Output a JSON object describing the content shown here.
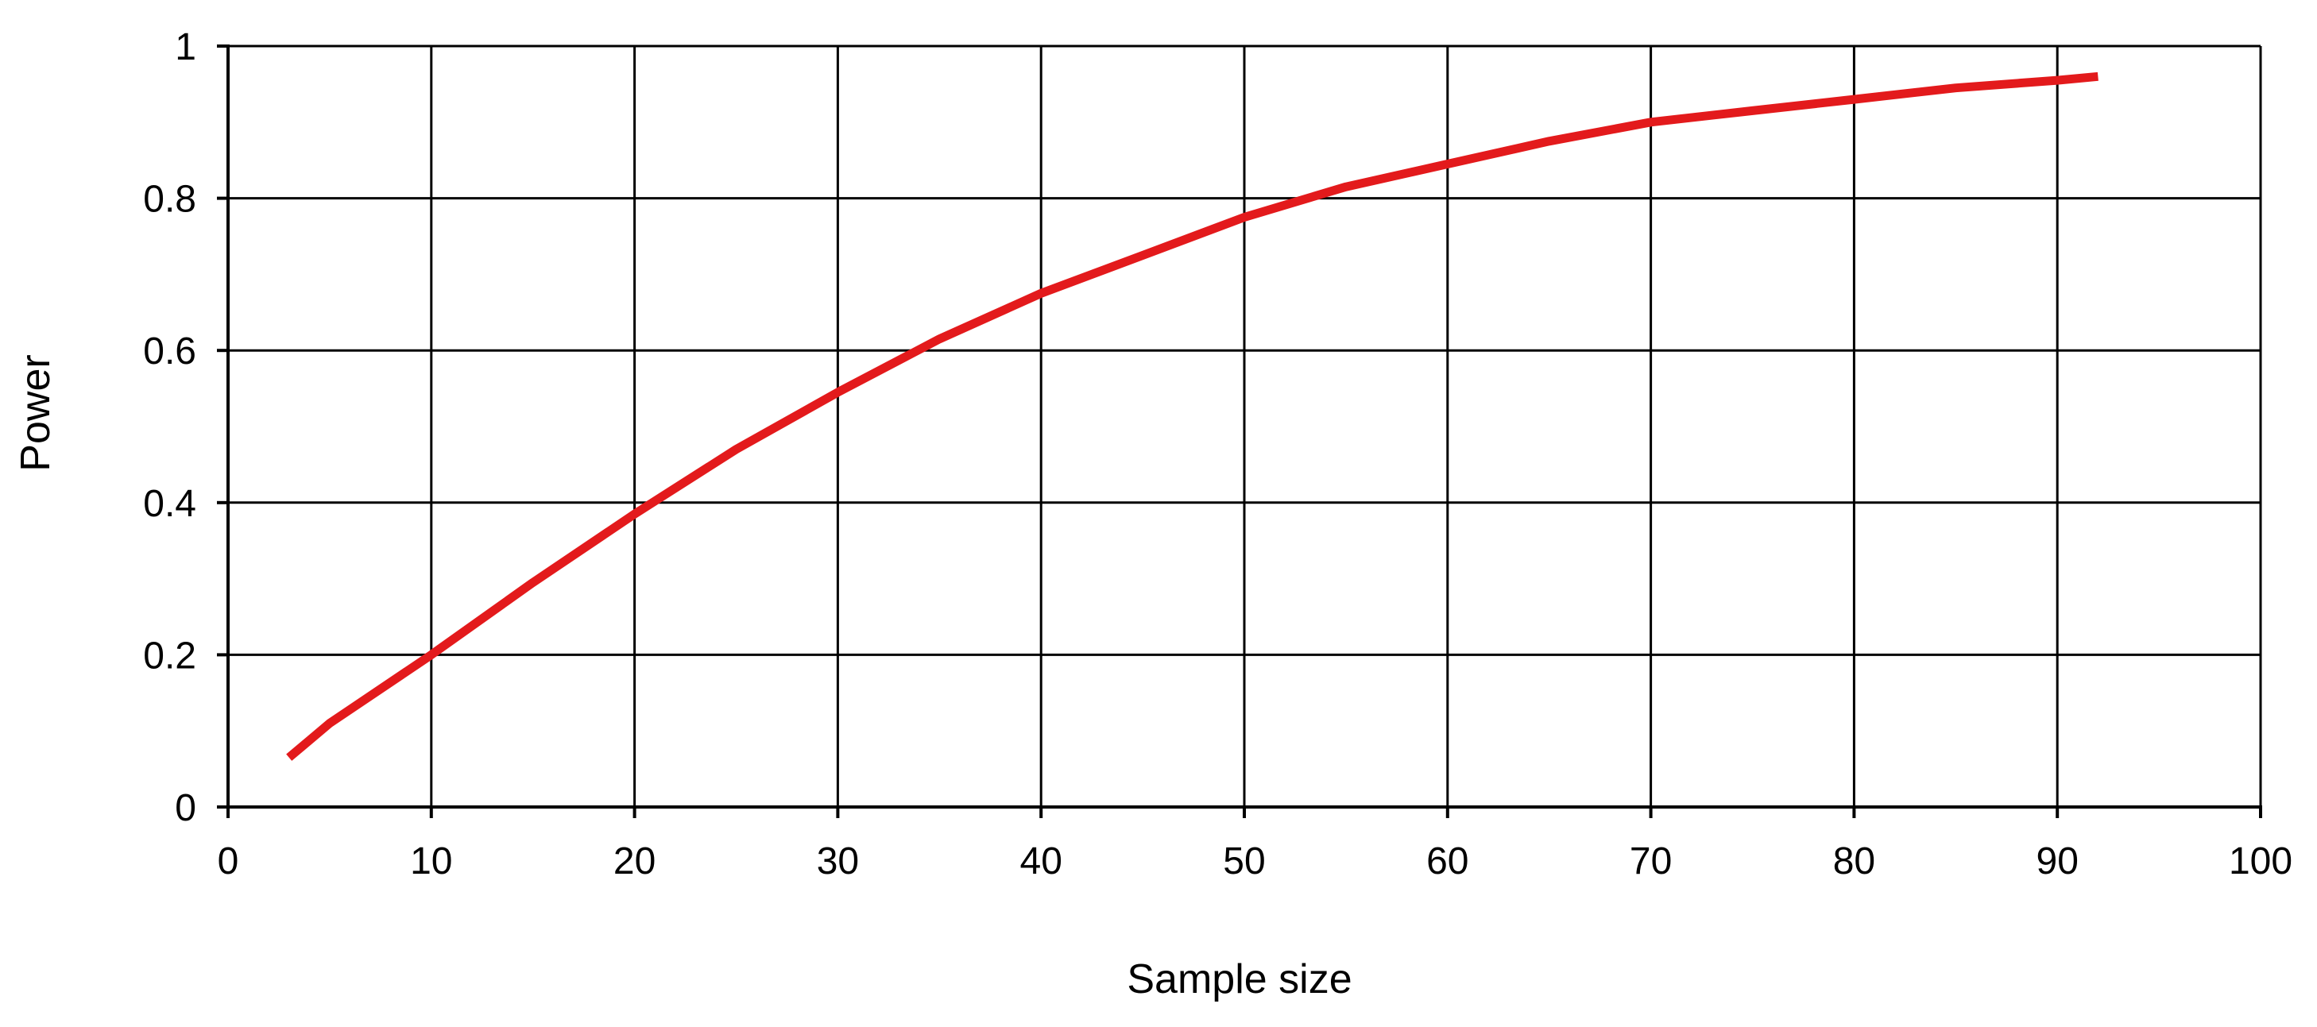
{
  "chart_data": {
    "type": "line",
    "title": "",
    "xlabel": "Sample size",
    "ylabel": "Power",
    "xlim": [
      0,
      100
    ],
    "ylim": [
      0,
      1
    ],
    "xticks": [
      0,
      10,
      20,
      30,
      40,
      50,
      60,
      70,
      80,
      90,
      100
    ],
    "yticks": [
      0,
      0.2,
      0.4,
      0.6,
      0.8,
      1
    ],
    "xtick_labels": [
      "0",
      "10",
      "20",
      "30",
      "40",
      "50",
      "60",
      "70",
      "80",
      "90",
      "100"
    ],
    "ytick_labels": [
      "0",
      "0.2",
      "0.4",
      "0.6",
      "0.8",
      "1"
    ],
    "grid": true,
    "legend": "none",
    "series": [
      {
        "color": "#e31a1c",
        "x": [
          3,
          5,
          10,
          15,
          20,
          25,
          30,
          35,
          40,
          45,
          50,
          55,
          60,
          65,
          70,
          75,
          80,
          85,
          90,
          92
        ],
        "y": [
          0.065,
          0.11,
          0.2,
          0.295,
          0.385,
          0.47,
          0.545,
          0.615,
          0.675,
          0.725,
          0.775,
          0.815,
          0.845,
          0.875,
          0.9,
          0.915,
          0.93,
          0.945,
          0.955,
          0.96
        ]
      }
    ]
  }
}
